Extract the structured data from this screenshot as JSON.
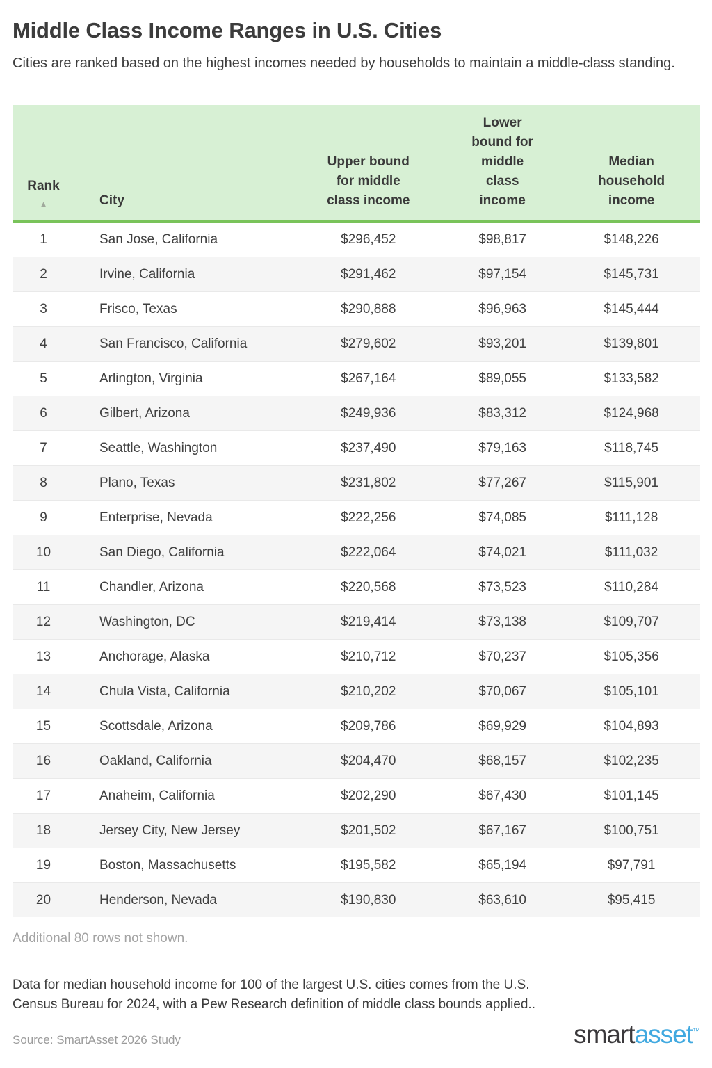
{
  "page": {
    "title": "Middle Class Income Ranges in U.S. Cities",
    "subtitle": "Cities are ranked based on the highest incomes needed by households to maintain a middle-class standing.",
    "note_additional": "Additional 80 rows not shown.",
    "footnote": "Data for median household income for 100 of the largest U.S. cities comes from the U.S. Census Bureau for 2024, with a Pew Research definition of middle class bounds applied..",
    "source": "Source: SmartAsset 2026 Study",
    "logo": {
      "smart": "smart",
      "asset": "asset",
      "tm": "™"
    }
  },
  "colors": {
    "header_green_bg": "#d7f0d4",
    "header_green_border": "#79c35a",
    "row_stripe": "#f5f5f5",
    "brand_dark": "#3b393c",
    "brand_blue": "#41a9e0"
  },
  "table": {
    "sort_icon": "▲",
    "columns": [
      {
        "label": "Rank"
      },
      {
        "label": "City"
      },
      {
        "label": "Upper bound for middle class income"
      },
      {
        "label": "Lower bound for middle class income"
      },
      {
        "label": "Median household income"
      }
    ],
    "rows": [
      {
        "rank": "1",
        "city": "San Jose, California",
        "upper": "$296,452",
        "lower": "$98,817",
        "median": "$148,226"
      },
      {
        "rank": "2",
        "city": "Irvine, California",
        "upper": "$291,462",
        "lower": "$97,154",
        "median": "$145,731"
      },
      {
        "rank": "3",
        "city": "Frisco, Texas",
        "upper": "$290,888",
        "lower": "$96,963",
        "median": "$145,444"
      },
      {
        "rank": "4",
        "city": "San Francisco, California",
        "upper": "$279,602",
        "lower": "$93,201",
        "median": "$139,801"
      },
      {
        "rank": "5",
        "city": "Arlington, Virginia",
        "upper": "$267,164",
        "lower": "$89,055",
        "median": "$133,582"
      },
      {
        "rank": "6",
        "city": "Gilbert, Arizona",
        "upper": "$249,936",
        "lower": "$83,312",
        "median": "$124,968"
      },
      {
        "rank": "7",
        "city": "Seattle, Washington",
        "upper": "$237,490",
        "lower": "$79,163",
        "median": "$118,745"
      },
      {
        "rank": "8",
        "city": "Plano, Texas",
        "upper": "$231,802",
        "lower": "$77,267",
        "median": "$115,901"
      },
      {
        "rank": "9",
        "city": "Enterprise, Nevada",
        "upper": "$222,256",
        "lower": "$74,085",
        "median": "$111,128"
      },
      {
        "rank": "10",
        "city": "San Diego, California",
        "upper": "$222,064",
        "lower": "$74,021",
        "median": "$111,032"
      },
      {
        "rank": "11",
        "city": "Chandler, Arizona",
        "upper": "$220,568",
        "lower": "$73,523",
        "median": "$110,284"
      },
      {
        "rank": "12",
        "city": "Washington, DC",
        "upper": "$219,414",
        "lower": "$73,138",
        "median": "$109,707"
      },
      {
        "rank": "13",
        "city": "Anchorage, Alaska",
        "upper": "$210,712",
        "lower": "$70,237",
        "median": "$105,356"
      },
      {
        "rank": "14",
        "city": "Chula Vista, California",
        "upper": "$210,202",
        "lower": "$70,067",
        "median": "$105,101"
      },
      {
        "rank": "15",
        "city": "Scottsdale, Arizona",
        "upper": "$209,786",
        "lower": "$69,929",
        "median": "$104,893"
      },
      {
        "rank": "16",
        "city": "Oakland, California",
        "upper": "$204,470",
        "lower": "$68,157",
        "median": "$102,235"
      },
      {
        "rank": "17",
        "city": "Anaheim, California",
        "upper": "$202,290",
        "lower": "$67,430",
        "median": "$101,145"
      },
      {
        "rank": "18",
        "city": "Jersey City, New Jersey",
        "upper": "$201,502",
        "lower": "$67,167",
        "median": "$100,751"
      },
      {
        "rank": "19",
        "city": "Boston, Massachusetts",
        "upper": "$195,582",
        "lower": "$65,194",
        "median": "$97,791"
      },
      {
        "rank": "20",
        "city": "Henderson, Nevada",
        "upper": "$190,830",
        "lower": "$63,610",
        "median": "$95,415"
      }
    ]
  },
  "chart_data": {
    "type": "table",
    "title": "Middle Class Income Ranges in U.S. Cities",
    "columns": [
      "Rank",
      "City",
      "Upper bound for middle class income",
      "Lower bound for middle class income",
      "Median household income"
    ],
    "categories": [
      "San Jose, California",
      "Irvine, California",
      "Frisco, Texas",
      "San Francisco, California",
      "Arlington, Virginia",
      "Gilbert, Arizona",
      "Seattle, Washington",
      "Plano, Texas",
      "Enterprise, Nevada",
      "San Diego, California",
      "Chandler, Arizona",
      "Washington, DC",
      "Anchorage, Alaska",
      "Chula Vista, California",
      "Scottsdale, Arizona",
      "Oakland, California",
      "Anaheim, California",
      "Jersey City, New Jersey",
      "Boston, Massachusetts",
      "Henderson, Nevada"
    ],
    "series": [
      {
        "name": "Upper bound for middle class income",
        "values": [
          296452,
          291462,
          290888,
          279602,
          267164,
          249936,
          237490,
          231802,
          222256,
          222064,
          220568,
          219414,
          210712,
          210202,
          209786,
          204470,
          202290,
          201502,
          195582,
          190830
        ]
      },
      {
        "name": "Lower bound for middle class income",
        "values": [
          98817,
          97154,
          96963,
          93201,
          89055,
          83312,
          79163,
          77267,
          74085,
          74021,
          73523,
          73138,
          70237,
          70067,
          69929,
          68157,
          67430,
          67167,
          65194,
          63610
        ]
      },
      {
        "name": "Median household income",
        "values": [
          148226,
          145731,
          145444,
          139801,
          133582,
          124968,
          118745,
          115901,
          111128,
          111032,
          110284,
          109707,
          105356,
          105101,
          104893,
          102235,
          101145,
          100751,
          97791,
          95415
        ]
      }
    ],
    "annotations": [
      "Additional 80 rows not shown.",
      "Source: SmartAsset 2026 Study"
    ]
  }
}
